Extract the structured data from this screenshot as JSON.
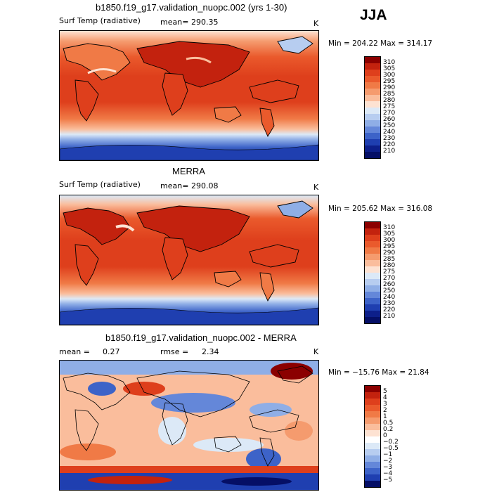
{
  "season": "JJA",
  "chart_data": [
    {
      "type": "heatmap",
      "title": "b1850.f19_g17.validation_nuopc.002 (yrs 1-30)",
      "variable": "Surf Temp (radiative)",
      "mean_label": "mean=",
      "mean_value": "290.35",
      "units": "K",
      "min_max_text": "Min = 204.22 Max = 314.17",
      "min": 204.22,
      "max": 314.17,
      "colorbar": {
        "levels": [
          "310",
          "305",
          "300",
          "295",
          "290",
          "285",
          "280",
          "275",
          "270",
          "260",
          "250",
          "240",
          "230",
          "220",
          "210"
        ],
        "colors": [
          "#8b0000",
          "#c3220e",
          "#de3f1c",
          "#ea5a2c",
          "#f07a46",
          "#f59b6e",
          "#fabd9c",
          "#fde2d2",
          "#dce9f7",
          "#b7cdf0",
          "#8faee6",
          "#6487d9",
          "#3d63c8",
          "#1f3fb0",
          "#0d1f8a",
          "#050f66"
        ]
      }
    },
    {
      "type": "heatmap",
      "title": "MERRA",
      "variable": "Surf Temp (radiative)",
      "mean_label": "mean=",
      "mean_value": "290.08",
      "units": "K",
      "min_max_text": "Min = 205.62 Max = 316.08",
      "min": 205.62,
      "max": 316.08,
      "colorbar": {
        "levels": [
          "310",
          "305",
          "300",
          "295",
          "290",
          "285",
          "280",
          "275",
          "270",
          "260",
          "250",
          "240",
          "230",
          "220",
          "210"
        ],
        "colors": [
          "#8b0000",
          "#c3220e",
          "#de3f1c",
          "#ea5a2c",
          "#f07a46",
          "#f59b6e",
          "#fabd9c",
          "#fde2d2",
          "#dce9f7",
          "#b7cdf0",
          "#8faee6",
          "#6487d9",
          "#3d63c8",
          "#1f3fb0",
          "#0d1f8a",
          "#050f66"
        ]
      }
    },
    {
      "type": "heatmap",
      "title": "b1850.f19_g17.validation_nuopc.002 - MERRA",
      "mean_label": "mean =",
      "mean_value": "0.27",
      "rmse_label": "rmse =",
      "rmse_value": "2.34",
      "units": "K",
      "min_max_text": "Min = −15.76 Max = 21.84",
      "min": -15.76,
      "max": 21.84,
      "colorbar": {
        "levels": [
          "5",
          "4",
          "3",
          "2",
          "1",
          "0.5",
          "0.2",
          "0",
          "−0.2",
          "−0.5",
          "−1",
          "−2",
          "−3",
          "−4",
          "−5"
        ],
        "colors": [
          "#8b0000",
          "#c3220e",
          "#de3f1c",
          "#ea5a2c",
          "#f07a46",
          "#f59b6e",
          "#fabd9c",
          "#fde2d2",
          "#ffffff",
          "#dce9f7",
          "#b7cdf0",
          "#8faee6",
          "#6487d9",
          "#3d63c8",
          "#1f3fb0",
          "#050f66"
        ]
      }
    }
  ]
}
